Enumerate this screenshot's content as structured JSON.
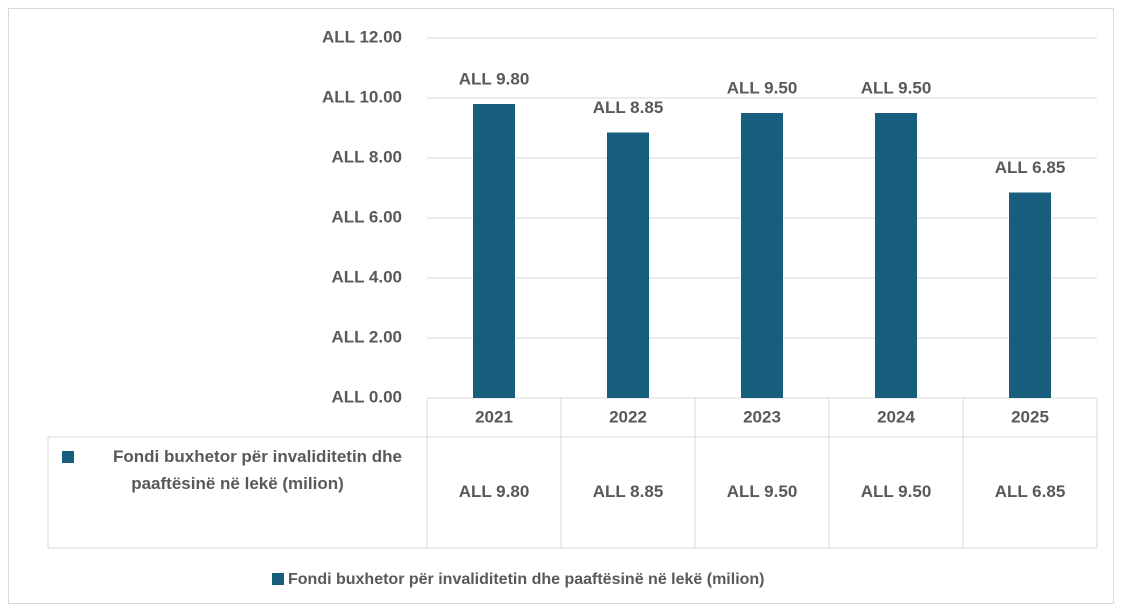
{
  "chart_data": {
    "type": "bar",
    "categories": [
      "2021",
      "2022",
      "2023",
      "2024",
      "2025"
    ],
    "series": [
      {
        "name": "Fondi buxhetor për invaliditetin dhe paaftësinë në lekë (milion)",
        "color": "#175e7e",
        "values": [
          9.8,
          8.85,
          9.5,
          9.5,
          6.85
        ],
        "value_labels": [
          "ALL 9.80",
          "ALL 8.85",
          "ALL 9.50",
          "ALL 9.50",
          "ALL 6.85"
        ]
      }
    ],
    "ylim": [
      0,
      12
    ],
    "yticks": [
      {
        "value": 0,
        "label": "ALL 0.00"
      },
      {
        "value": 2,
        "label": "ALL 2.00"
      },
      {
        "value": 4,
        "label": "ALL 4.00"
      },
      {
        "value": 6,
        "label": "ALL 6.00"
      },
      {
        "value": 8,
        "label": "ALL 8.00"
      },
      {
        "value": 10,
        "label": "ALL 10.00"
      },
      {
        "value": 12,
        "label": "ALL 12.00"
      }
    ],
    "grid": true,
    "legend": "bottom",
    "data_table": true
  }
}
